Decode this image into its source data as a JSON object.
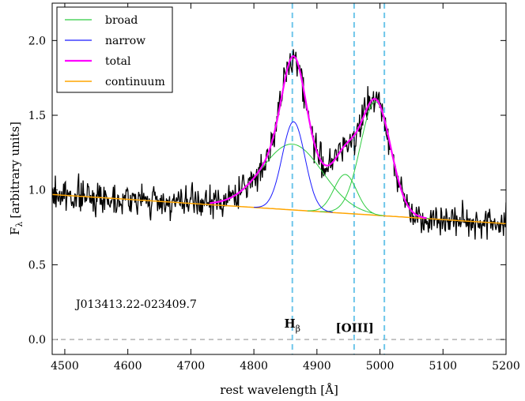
{
  "chart_data": {
    "type": "line",
    "xlabel": "rest wavelength [Å]",
    "ylabel": "F",
    "ylabel_sub": "λ",
    "ylabel_rest": "[arbitrary units]",
    "xlim": [
      4480,
      5200
    ],
    "ylim": [
      -0.1,
      2.25
    ],
    "xticks": [
      4500,
      4600,
      4700,
      4800,
      4900,
      5000,
      5100,
      5200
    ],
    "yticks": [
      0.0,
      0.5,
      1.0,
      1.5,
      2.0
    ],
    "xtick_labels": [
      "4500",
      "4600",
      "4700",
      "4800",
      "4900",
      "5000",
      "5100",
      "5200"
    ],
    "ytick_labels": [
      "0.0",
      "0.5",
      "1.0",
      "1.5",
      "2.0"
    ],
    "legend_position": "top-left",
    "legend": [
      {
        "label": "broad",
        "color": "#2ecc40"
      },
      {
        "label": "narrow",
        "color": "#1a1aff"
      },
      {
        "label": "total",
        "color": "#ff00ff"
      },
      {
        "label": "continuum",
        "color": "#ffa500"
      }
    ],
    "object_name": "J013413.22-023409.7",
    "vertical_lines": [
      4861,
      4959,
      5007
    ],
    "horizontal_line": 0.0,
    "line_labels": [
      {
        "text": "H",
        "sub": "β",
        "x": 4861,
        "y": 0.08
      },
      {
        "text": "[OIII]",
        "x": 4960,
        "y": 0.05
      }
    ],
    "continuum": {
      "x": [
        4480,
        5200
      ],
      "y": [
        0.97,
        0.775
      ]
    },
    "components": {
      "broad_hbeta": {
        "center": 4861,
        "amp": 0.44,
        "sigma": 48
      },
      "broad_oiii_a": {
        "center": 4945,
        "amp": 0.26,
        "sigma": 18
      },
      "broad_oiii_b": {
        "center": 4993,
        "amp": 0.76,
        "sigma": 24
      },
      "narrow_hbeta": {
        "center": 4863,
        "amp": 0.59,
        "sigma": 18
      }
    },
    "spectrum": {
      "x_range": [
        4480,
        5200
      ],
      "points": 720,
      "noise_sigma": 0.075,
      "seed": 7
    }
  }
}
